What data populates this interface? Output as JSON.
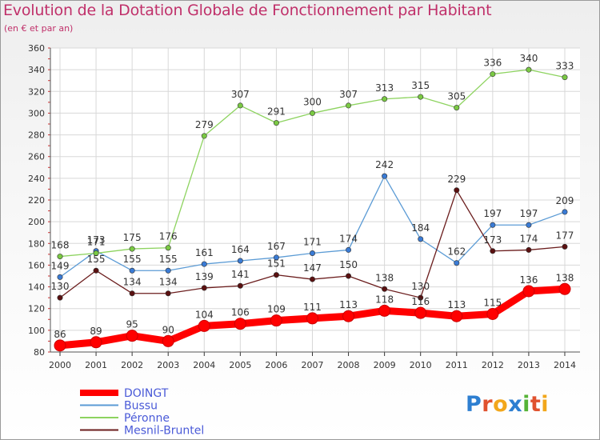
{
  "title": "Evolution de la Dotation Globale de Fonctionnement par Habitant",
  "subtitle": "(en € et par an)",
  "logo_text": "Proxiti",
  "chart_data": {
    "type": "line",
    "title": "Evolution de la Dotation Globale de Fonctionnement par Habitant",
    "subtitle": "(en € et par an)",
    "x": [
      "2000",
      "2001",
      "2002",
      "2003",
      "2004",
      "2005",
      "2006",
      "2007",
      "2008",
      "2009",
      "2010",
      "2011",
      "2012",
      "2013",
      "2014"
    ],
    "ylim": [
      80,
      360
    ],
    "yticks": [
      80,
      100,
      120,
      140,
      160,
      180,
      200,
      220,
      240,
      260,
      280,
      300,
      320,
      340,
      360
    ],
    "grid": true,
    "legend_position": "bottom-left",
    "series": [
      {
        "name": "DOINGT",
        "color": "#ff0000",
        "highlight": true,
        "values": [
          86,
          89,
          95,
          90,
          104,
          106,
          109,
          111,
          113,
          118,
          116,
          113,
          115,
          136,
          138
        ]
      },
      {
        "name": "Bussu",
        "color": "#5b9bd5",
        "values": [
          149,
          173,
          155,
          155,
          161,
          164,
          167,
          171,
          174,
          242,
          184,
          162,
          197,
          197,
          209
        ]
      },
      {
        "name": "Péronne",
        "color": "#8dd35f",
        "values": [
          168,
          171,
          175,
          176,
          279,
          307,
          291,
          300,
          307,
          313,
          315,
          305,
          336,
          340,
          333
        ]
      },
      {
        "name": "Mesnil-Bruntel",
        "color": "#6b1d1d",
        "values": [
          130,
          155,
          134,
          134,
          139,
          141,
          151,
          147,
          150,
          138,
          130,
          229,
          173,
          174,
          177
        ]
      }
    ],
    "data_labels": {
      "DOINGT": [
        "86",
        "89",
        "95",
        "90",
        "104",
        "106",
        "109",
        "111",
        "113",
        "118",
        "116",
        "113",
        "115",
        "136",
        "138"
      ],
      "Bussu": [
        "149",
        "173",
        "155",
        "155",
        "161",
        "164",
        "167",
        "171",
        "174",
        "242",
        "184",
        "162",
        "197",
        "197",
        "209"
      ],
      "Péronne": [
        "168",
        "171",
        "175",
        "176",
        "279",
        "307",
        "291",
        "300",
        "307",
        "313",
        "315",
        "305",
        "336",
        "340",
        "333"
      ],
      "Mesnil-Bruntel": [
        "130",
        "155",
        "134",
        "134",
        "139",
        "141",
        "151",
        "147",
        "150",
        "138",
        "130",
        "229",
        "173",
        "174",
        "177"
      ]
    }
  }
}
